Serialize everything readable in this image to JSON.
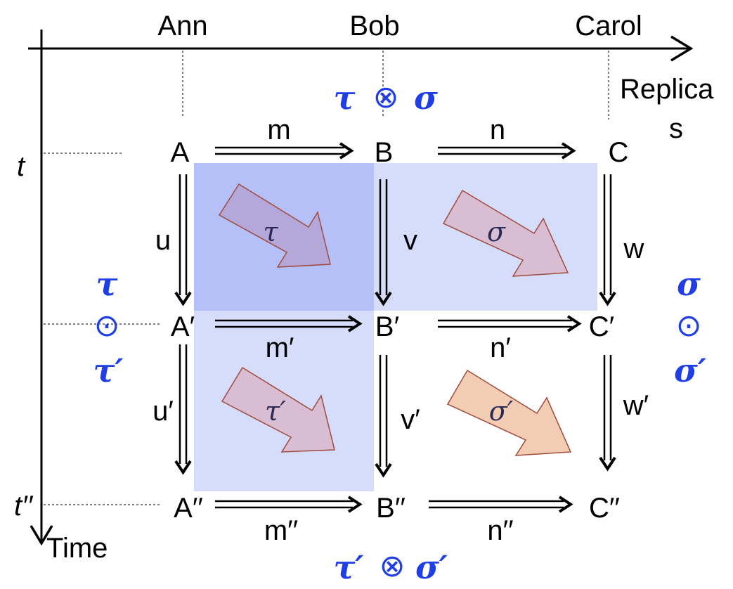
{
  "axes": {
    "replicas": [
      "Ann",
      "Bob",
      "Carol"
    ],
    "replicas_label": "Replica",
    "replicas_label_wrap": "s",
    "time_label": "Time",
    "time_marks": [
      "t",
      "t′′"
    ]
  },
  "nodes": {
    "A": "A",
    "B": "B",
    "C": "C",
    "A1": "A′",
    "B1": "B′",
    "C1": "C′",
    "A2": "A′′",
    "B2": "B′′",
    "C2": "C′′"
  },
  "edges": {
    "m": "m",
    "n": "n",
    "m1": "m′",
    "n1": "n′",
    "m2": "m′′",
    "n2": "n′′",
    "u": "u",
    "v": "v",
    "w": "w",
    "u1": "u′",
    "v1": "v′",
    "w1": "w′"
  },
  "transforms": {
    "tau": "τ",
    "sigma": "σ",
    "tau1": "τ′",
    "sigma1": "σ′"
  },
  "compositions": {
    "top_left": "τ",
    "top_op": "⊗",
    "top_right": "σ",
    "bottom_left": "τ′",
    "bottom_op": "⊗",
    "bottom_right": "σ′",
    "left_top": "τ",
    "left_op": "⊙",
    "left_bottom": "τ′",
    "right_top": "σ",
    "right_op": "⊙",
    "right_bottom": "σ′"
  },
  "colors": {
    "blue_text": "#1f3ee8",
    "square_dark": "#b4c0f7",
    "square_light": "#d6ddfb",
    "arrow_purple": "#c8b0d6",
    "arrow_orange": "#f3cdb3",
    "arrow_border": "#a04a3c"
  }
}
